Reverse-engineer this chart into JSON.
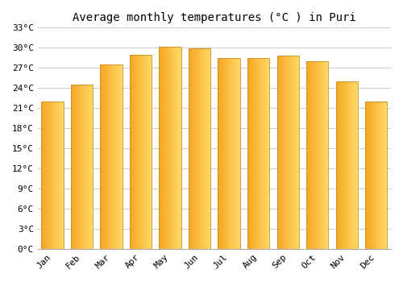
{
  "title": "Average monthly temperatures (°C ) in Puri",
  "months": [
    "Jan",
    "Feb",
    "Mar",
    "Apr",
    "May",
    "Jun",
    "Jul",
    "Aug",
    "Sep",
    "Oct",
    "Nov",
    "Dec"
  ],
  "temperatures": [
    22,
    24.5,
    27.5,
    29,
    30.1,
    29.9,
    28.5,
    28.5,
    28.8,
    28,
    25,
    22
  ],
  "bar_color_left": "#F5A623",
  "bar_color_right": "#FFD966",
  "bar_border_color": "#C8902A",
  "ylim": [
    0,
    33
  ],
  "yticks": [
    0,
    3,
    6,
    9,
    12,
    15,
    18,
    21,
    24,
    27,
    30,
    33
  ],
  "ytick_labels": [
    "0°C",
    "3°C",
    "6°C",
    "9°C",
    "12°C",
    "15°C",
    "18°C",
    "21°C",
    "24°C",
    "27°C",
    "30°C",
    "33°C"
  ],
  "background_color": "#ffffff",
  "grid_color": "#cccccc",
  "title_fontsize": 10,
  "tick_fontsize": 8,
  "font_family": "monospace",
  "bar_width": 0.75
}
